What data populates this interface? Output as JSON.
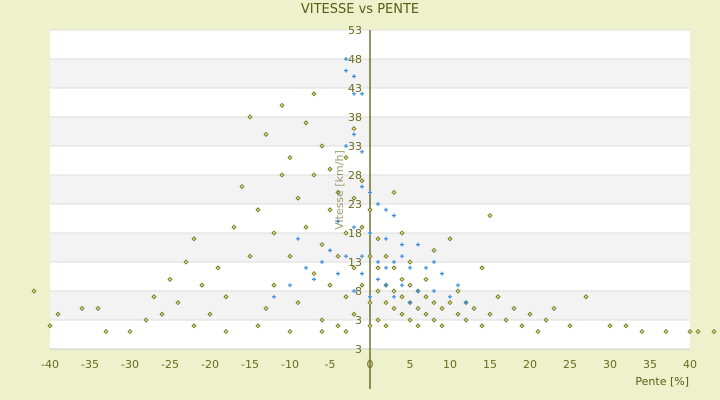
{
  "chart_data": {
    "type": "scatter",
    "title": "VITESSE vs PENTE",
    "xlabel": "Pente [%]",
    "ylabel": "Vitesse [km/h]",
    "xlim": [
      -40,
      40
    ],
    "ylim": [
      -2,
      53
    ],
    "x_ticks": [
      -40,
      -35,
      -30,
      -25,
      -20,
      -15,
      -10,
      -5,
      0,
      5,
      10,
      15,
      20,
      25,
      30,
      35,
      40
    ],
    "y_ticks": [
      53,
      48,
      43,
      38,
      33,
      28,
      23,
      18,
      13,
      8,
      3
    ],
    "y_bottom_label": "3",
    "grid": "horizontal bands",
    "colors": {
      "series1": "#6b6b10",
      "series2": "#3a8ee0",
      "background": "#eef2cc",
      "band": "#f3f3f3"
    },
    "series": [
      {
        "marker": "diamond",
        "points": [
          [
            -42,
            8
          ],
          [
            -40,
            2
          ],
          [
            -39,
            4
          ],
          [
            -36,
            5
          ],
          [
            -34,
            5
          ],
          [
            -33,
            1
          ],
          [
            -30,
            1
          ],
          [
            -28,
            3
          ],
          [
            -27,
            7
          ],
          [
            -26,
            4
          ],
          [
            -25,
            10
          ],
          [
            -24,
            6
          ],
          [
            -23,
            13
          ],
          [
            -22,
            17
          ],
          [
            -21,
            9
          ],
          [
            -20,
            4
          ],
          [
            -19,
            12
          ],
          [
            -18,
            7
          ],
          [
            -17,
            19
          ],
          [
            -16,
            26
          ],
          [
            -15,
            38
          ],
          [
            -15,
            14
          ],
          [
            -14,
            22
          ],
          [
            -13,
            35
          ],
          [
            -13,
            5
          ],
          [
            -12,
            18
          ],
          [
            -12,
            9
          ],
          [
            -11,
            40
          ],
          [
            -11,
            28
          ],
          [
            -10,
            14
          ],
          [
            -10,
            31
          ],
          [
            -9,
            24
          ],
          [
            -9,
            6
          ],
          [
            -8,
            37
          ],
          [
            -8,
            19
          ],
          [
            -7,
            42
          ],
          [
            -7,
            11
          ],
          [
            -7,
            28
          ],
          [
            -6,
            33
          ],
          [
            -6,
            16
          ],
          [
            -6,
            3
          ],
          [
            -5,
            22
          ],
          [
            -5,
            9
          ],
          [
            -5,
            29
          ],
          [
            -4,
            25
          ],
          [
            -4,
            14
          ],
          [
            -4,
            2
          ],
          [
            -3,
            31
          ],
          [
            -3,
            18
          ],
          [
            -3,
            7
          ],
          [
            -2,
            36
          ],
          [
            -2,
            24
          ],
          [
            -2,
            12
          ],
          [
            -2,
            4
          ],
          [
            -1,
            27
          ],
          [
            -1,
            19
          ],
          [
            -1,
            9
          ],
          [
            0,
            22
          ],
          [
            0,
            14
          ],
          [
            0,
            6
          ],
          [
            0,
            2
          ],
          [
            1,
            17
          ],
          [
            1,
            12
          ],
          [
            1,
            8
          ],
          [
            1,
            3
          ],
          [
            2,
            14
          ],
          [
            2,
            9
          ],
          [
            2,
            6
          ],
          [
            2,
            2
          ],
          [
            3,
            12
          ],
          [
            3,
            8
          ],
          [
            3,
            5
          ],
          [
            3,
            25
          ],
          [
            4,
            10
          ],
          [
            4,
            7
          ],
          [
            4,
            4
          ],
          [
            4,
            18
          ],
          [
            5,
            9
          ],
          [
            5,
            6
          ],
          [
            5,
            3
          ],
          [
            5,
            13
          ],
          [
            6,
            8
          ],
          [
            6,
            5
          ],
          [
            6,
            2
          ],
          [
            7,
            7
          ],
          [
            7,
            4
          ],
          [
            7,
            10
          ],
          [
            8,
            6
          ],
          [
            8,
            3
          ],
          [
            8,
            15
          ],
          [
            9,
            5
          ],
          [
            9,
            2
          ],
          [
            10,
            6
          ],
          [
            10,
            17
          ],
          [
            11,
            4
          ],
          [
            11,
            8
          ],
          [
            12,
            3
          ],
          [
            12,
            6
          ],
          [
            13,
            5
          ],
          [
            14,
            2
          ],
          [
            14,
            12
          ],
          [
            15,
            21
          ],
          [
            15,
            4
          ],
          [
            16,
            7
          ],
          [
            17,
            3
          ],
          [
            18,
            5
          ],
          [
            19,
            2
          ],
          [
            20,
            4
          ],
          [
            21,
            1
          ],
          [
            22,
            3
          ],
          [
            23,
            5
          ],
          [
            25,
            2
          ],
          [
            27,
            7
          ],
          [
            30,
            2
          ],
          [
            32,
            2
          ],
          [
            34,
            1
          ],
          [
            37,
            1
          ],
          [
            40,
            1
          ],
          [
            41,
            1
          ],
          [
            43,
            1
          ],
          [
            -22,
            2
          ],
          [
            -18,
            1
          ],
          [
            -14,
            2
          ],
          [
            -10,
            1
          ],
          [
            -6,
            1
          ],
          [
            -3,
            1
          ]
        ]
      },
      {
        "marker": "plus",
        "points": [
          [
            -3,
            48
          ],
          [
            -3,
            46
          ],
          [
            -2,
            45
          ],
          [
            -2,
            42
          ],
          [
            -1,
            42
          ],
          [
            -2,
            35
          ],
          [
            -3,
            33
          ],
          [
            -1,
            32
          ],
          [
            -1,
            26
          ],
          [
            0,
            25
          ],
          [
            1,
            23
          ],
          [
            2,
            22
          ],
          [
            3,
            21
          ],
          [
            -4,
            20
          ],
          [
            -2,
            19
          ],
          [
            0,
            18
          ],
          [
            2,
            17
          ],
          [
            4,
            16
          ],
          [
            6,
            16
          ],
          [
            -5,
            15
          ],
          [
            -3,
            14
          ],
          [
            -1,
            14
          ],
          [
            1,
            13
          ],
          [
            3,
            13
          ],
          [
            5,
            12
          ],
          [
            7,
            12
          ],
          [
            9,
            11
          ],
          [
            -6,
            13
          ],
          [
            -8,
            12
          ],
          [
            -10,
            9
          ],
          [
            -12,
            7
          ],
          [
            -1,
            11
          ],
          [
            1,
            10
          ],
          [
            2,
            9
          ],
          [
            4,
            9
          ],
          [
            6,
            8
          ],
          [
            8,
            8
          ],
          [
            10,
            7
          ],
          [
            12,
            6
          ],
          [
            -2,
            8
          ],
          [
            0,
            7
          ],
          [
            3,
            7
          ],
          [
            5,
            6
          ],
          [
            -7,
            10
          ],
          [
            -9,
            17
          ],
          [
            -4,
            11
          ],
          [
            2,
            12
          ],
          [
            4,
            14
          ],
          [
            8,
            13
          ],
          [
            11,
            9
          ]
        ]
      }
    ]
  }
}
